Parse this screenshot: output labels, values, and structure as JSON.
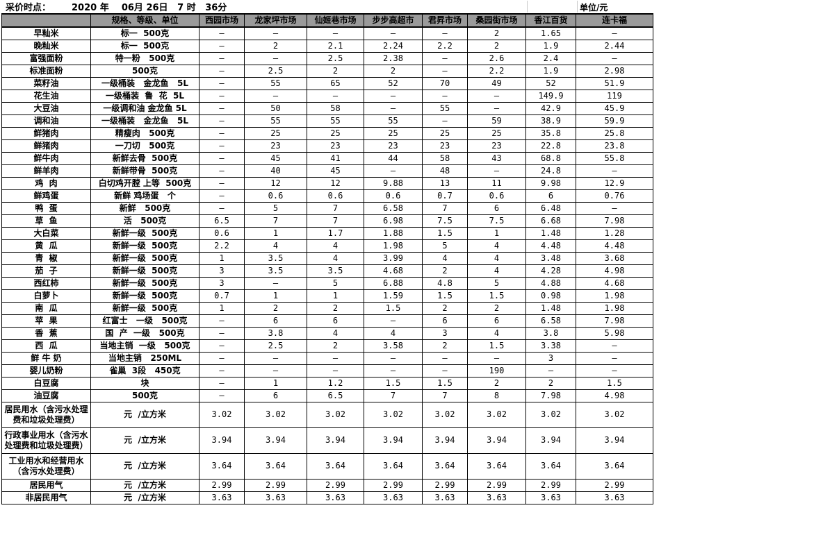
{
  "title": {
    "label": "采价时点：",
    "datetime": "2020 年    06月 26日   7 时   36分",
    "unit_note": "单位/元"
  },
  "table": {
    "headers": [
      "",
      "规格、等级、单位",
      "西园市场",
      "龙家坪市场",
      "仙姬巷市场",
      "步步高超市",
      "君昇市场",
      "桑园街市场",
      "香江百货",
      "连卡福"
    ],
    "rows": [
      {
        "name": "早籼米",
        "spec": "标一  500克",
        "tall": false,
        "prices": [
          "–",
          "–",
          "–",
          "–",
          "–",
          "2",
          "1.65",
          "–"
        ]
      },
      {
        "name": "晚籼米",
        "spec": "标一  500克",
        "tall": false,
        "prices": [
          "–",
          "2",
          "2.1",
          "2.24",
          "2.2",
          "2",
          "1.9",
          "2.44"
        ]
      },
      {
        "name": "富强面粉",
        "spec": "特一粉   500克",
        "tall": false,
        "prices": [
          "–",
          "–",
          "2.5",
          "2.38",
          "–",
          "2.6",
          "2.4",
          "–"
        ]
      },
      {
        "name": "标准面粉",
        "spec": "500克",
        "tall": false,
        "prices": [
          "–",
          "2.5",
          "2",
          "2",
          "–",
          "2.2",
          "1.9",
          "2.98"
        ]
      },
      {
        "name": "菜籽油",
        "spec": "一级桶装   金龙鱼   5L",
        "tall": false,
        "prices": [
          "–",
          "55",
          "65",
          "52",
          "70",
          "49",
          "52",
          "51.9"
        ]
      },
      {
        "name": "花生油",
        "spec": "一级桶装  鲁  花  5L",
        "tall": false,
        "prices": [
          "–",
          "–",
          "–",
          "–",
          "–",
          "–",
          "149.9",
          "119"
        ]
      },
      {
        "name": "大豆油",
        "spec": "一级调和油 金龙鱼 5L",
        "tall": false,
        "prices": [
          "–",
          "50",
          "58",
          "–",
          "55",
          "–",
          "42.9",
          "45.9"
        ]
      },
      {
        "name": "调和油",
        "spec": "一级桶装   金龙鱼   5L",
        "tall": false,
        "prices": [
          "–",
          "55",
          "55",
          "55",
          "–",
          "59",
          "38.9",
          "59.9"
        ]
      },
      {
        "name": "鲜猪肉",
        "spec": "精瘦肉   500克",
        "tall": false,
        "prices": [
          "–",
          "25",
          "25",
          "25",
          "25",
          "25",
          "35.8",
          "25.8"
        ]
      },
      {
        "name": "鲜猪肉",
        "spec": "一刀切   500克",
        "tall": false,
        "prices": [
          "–",
          "23",
          "23",
          "23",
          "23",
          "23",
          "22.8",
          "23.8"
        ]
      },
      {
        "name": "鲜牛肉",
        "spec": "新鲜去骨  500克",
        "tall": false,
        "prices": [
          "–",
          "45",
          "41",
          "44",
          "58",
          "43",
          "68.8",
          "55.8"
        ]
      },
      {
        "name": "鲜羊肉",
        "spec": "新鲜带骨  500克",
        "tall": false,
        "prices": [
          "–",
          "40",
          "45",
          "–",
          "48",
          "–",
          "24.8",
          "–"
        ]
      },
      {
        "name": "鸡  肉",
        "spec": "白切鸡开膛 上等  500克",
        "tall": false,
        "prices": [
          "–",
          "12",
          "12",
          "9.88",
          "13",
          "11",
          "9.98",
          "12.9"
        ]
      },
      {
        "name": "鲜鸡蛋",
        "spec": "新鲜 鸡场蛋   个",
        "tall": false,
        "prices": [
          "–",
          "0.6",
          "0.6",
          "0.6",
          "0.7",
          "0.6",
          "6",
          "0.76"
        ]
      },
      {
        "name": "鸭  蛋",
        "spec": "新鲜   500克",
        "tall": false,
        "prices": [
          "–",
          "5",
          "7",
          "6.58",
          "7",
          "6",
          "6.48",
          "–"
        ]
      },
      {
        "name": "草  鱼",
        "spec": "活   500克",
        "tall": false,
        "prices": [
          "6.5",
          "7",
          "7",
          "6.98",
          "7.5",
          "7.5",
          "6.68",
          "7.98"
        ]
      },
      {
        "name": "大白菜",
        "spec": "新鲜一级  500克",
        "tall": false,
        "prices": [
          "0.6",
          "1",
          "1.7",
          "1.88",
          "1.5",
          "1",
          "1.48",
          "1.28"
        ]
      },
      {
        "name": "黄  瓜",
        "spec": "新鲜一级  500克",
        "tall": false,
        "prices": [
          "2.2",
          "4",
          "4",
          "1.98",
          "5",
          "4",
          "4.48",
          "4.48"
        ]
      },
      {
        "name": "青  椒",
        "spec": "新鲜一级  500克",
        "tall": false,
        "prices": [
          "1",
          "3.5",
          "4",
          "3.99",
          "4",
          "4",
          "3.48",
          "3.68"
        ]
      },
      {
        "name": "茄  子",
        "spec": "新鲜一级  500克",
        "tall": false,
        "prices": [
          "3",
          "3.5",
          "3.5",
          "4.68",
          "2",
          "4",
          "4.28",
          "4.98"
        ]
      },
      {
        "name": "西红柿",
        "spec": "新鲜一级  500克",
        "tall": false,
        "prices": [
          "3",
          "–",
          "5",
          "6.88",
          "4.8",
          "5",
          "4.88",
          "4.68"
        ]
      },
      {
        "name": "白萝卜",
        "spec": "新鲜一级  500克",
        "tall": false,
        "prices": [
          "0.7",
          "1",
          "1",
          "1.59",
          "1.5",
          "1.5",
          "0.98",
          "1.98"
        ]
      },
      {
        "name": "南  瓜",
        "spec": "新鲜一级  500克",
        "tall": false,
        "prices": [
          "1",
          "2",
          "2",
          "1.5",
          "2",
          "2",
          "1.48",
          "1.98"
        ]
      },
      {
        "name": "苹  果",
        "spec": "红富士   一级   500克",
        "tall": false,
        "prices": [
          "–",
          "6",
          "6",
          "–",
          "6",
          "6",
          "6.58",
          "7.98"
        ]
      },
      {
        "name": "香  蕉",
        "spec": "国  产  一级   500克",
        "tall": false,
        "prices": [
          "–",
          "3.8",
          "4",
          "4",
          "3",
          "4",
          "3.8",
          "5.98"
        ]
      },
      {
        "name": "西  瓜",
        "spec": "当地主销  一级   500克",
        "tall": false,
        "prices": [
          "–",
          "2.5",
          "2",
          "3.58",
          "2",
          "1.5",
          "3.38",
          "–"
        ]
      },
      {
        "name": "鲜 牛 奶",
        "spec": "当地主销   250ML",
        "tall": false,
        "prices": [
          "–",
          "–",
          "–",
          "–",
          "–",
          "–",
          "3",
          "–"
        ]
      },
      {
        "name": "婴儿奶粉",
        "spec": "雀巢  3段   450克",
        "tall": false,
        "prices": [
          "–",
          "–",
          "–",
          "–",
          "–",
          "190",
          "–",
          "–"
        ]
      },
      {
        "name": "白豆腐",
        "spec": "块",
        "tall": false,
        "prices": [
          "–",
          "1",
          "1.2",
          "1.5",
          "1.5",
          "2",
          "2",
          "1.5"
        ]
      },
      {
        "name": "油豆腐",
        "spec": "500克",
        "tall": false,
        "prices": [
          "–",
          "6",
          "6.5",
          "7",
          "7",
          "8",
          "7.98",
          "4.98"
        ]
      },
      {
        "name": "居民用水（含污水处理费和垃圾处理费）",
        "spec": "元  /立方米",
        "tall": true,
        "prices": [
          "3.02",
          "3.02",
          "3.02",
          "3.02",
          "3.02",
          "3.02",
          "3.02",
          "3.02"
        ]
      },
      {
        "name": "行政事业用水（含污水处理费和垃圾处理费）",
        "spec": "元  /立方米",
        "tall": true,
        "prices": [
          "3.94",
          "3.94",
          "3.94",
          "3.94",
          "3.94",
          "3.94",
          "3.94",
          "3.94"
        ]
      },
      {
        "name": "工业用水和经营用水（含污水处理费）",
        "spec": "元  /立方米",
        "tall": true,
        "prices": [
          "3.64",
          "3.64",
          "3.64",
          "3.64",
          "3.64",
          "3.64",
          "3.64",
          "3.64"
        ]
      },
      {
        "name": "居民用气",
        "spec": "元  /立方米",
        "tall": false,
        "prices": [
          "2.99",
          "2.99",
          "2.99",
          "2.99",
          "2.99",
          "2.99",
          "2.99",
          "2.99"
        ]
      },
      {
        "name": "非居民用气",
        "spec": "元  /立方米",
        "tall": false,
        "prices": [
          "3.63",
          "3.63",
          "3.63",
          "3.63",
          "3.63",
          "3.63",
          "3.63",
          "3.63"
        ]
      }
    ]
  }
}
